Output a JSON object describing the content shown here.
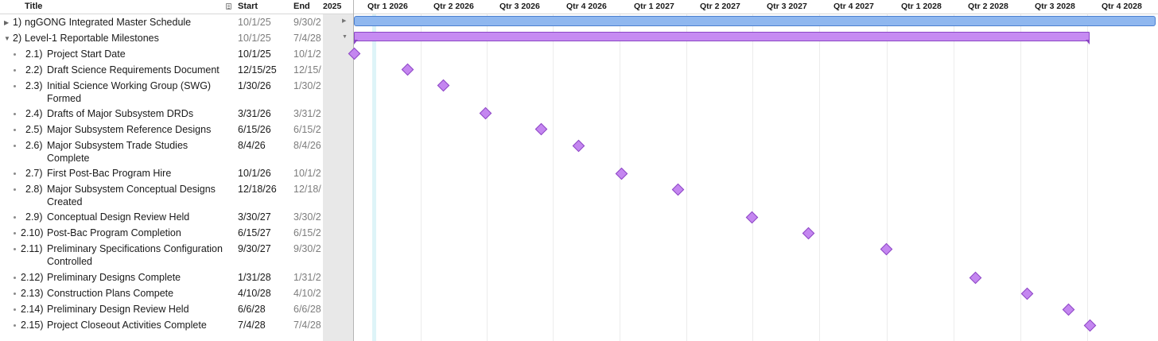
{
  "outline": {
    "headers": {
      "title": "Title",
      "start": "Start",
      "end": "End"
    },
    "rows": [
      {
        "num": "1)",
        "title": "ngGONG Integrated Master Schedule",
        "start": "10/1/25",
        "end": "9/30/2"
      },
      {
        "num": "2)",
        "title": "Level-1 Reportable Milestones",
        "start": "10/1/25",
        "end": "7/4/28"
      },
      {
        "num": "2.1)",
        "title": "Project Start Date",
        "start": "10/1/25",
        "end": "10/1/2"
      },
      {
        "num": "2.2)",
        "title": "Draft Science Requirements Document",
        "start": "12/15/25",
        "end": "12/15/"
      },
      {
        "num": "2.3)",
        "title": "Initial Science Working Group (SWG) Formed",
        "start": "1/30/26",
        "end": "1/30/2"
      },
      {
        "num": "2.4)",
        "title": "Drafts of Major Subsystem DRDs",
        "start": "3/31/26",
        "end": "3/31/2"
      },
      {
        "num": "2.5)",
        "title": "Major Subsystem Reference Designs",
        "start": "6/15/26",
        "end": "6/15/2"
      },
      {
        "num": "2.6)",
        "title": "Major Subsystem Trade Studies Complete",
        "start": "8/4/26",
        "end": "8/4/26"
      },
      {
        "num": "2.7)",
        "title": "First Post-Bac Program Hire",
        "start": "10/1/26",
        "end": "10/1/2"
      },
      {
        "num": "2.8)",
        "title": "Major Subsystem Conceptual Designs Created",
        "start": "12/18/26",
        "end": "12/18/"
      },
      {
        "num": "2.9)",
        "title": "Conceptual Design Review Held",
        "start": "3/30/27",
        "end": "3/30/2"
      },
      {
        "num": "2.10)",
        "title": "Post-Bac Program Completion",
        "start": "6/15/27",
        "end": "6/15/2"
      },
      {
        "num": "2.11)",
        "title": "Preliminary Specifications Configuration Controlled",
        "start": "9/30/27",
        "end": "9/30/2"
      },
      {
        "num": "2.12)",
        "title": "Preliminary Designs Complete",
        "start": "1/31/28",
        "end": "1/31/2"
      },
      {
        "num": "2.13)",
        "title": "Construction Plans Compete",
        "start": "4/10/28",
        "end": "4/10/2"
      },
      {
        "num": "2.14)",
        "title": "Preliminary Design Review Held",
        "start": "6/6/28",
        "end": "6/6/28"
      },
      {
        "num": "2.15)",
        "title": "Project Closeout Activities Complete",
        "start": "7/4/28",
        "end": "7/4/28"
      }
    ]
  },
  "timeline": {
    "quarters": [
      "2025",
      "Qtr 1 2026",
      "Qtr 2 2026",
      "Qtr 3 2026",
      "Qtr 4 2026",
      "Qtr 1 2027",
      "Qtr 2 2027",
      "Qtr 3 2027",
      "Qtr 4 2027",
      "Qtr 1 2028",
      "Qtr 2 2028",
      "Qtr 3 2028",
      "Qtr 4 2028"
    ]
  },
  "colors": {
    "summary_bar": "#8fb7ef",
    "milestone_group_bar": "#c68bf2",
    "milestone_diamond": "#c486f0",
    "today_line": "#def4f8"
  },
  "icons": {
    "collapsed": "disclosure-triangle-right-icon",
    "expanded": "disclosure-triangle-down-icon",
    "bullet": "bullet-icon",
    "columns": "column-chooser-icon"
  }
}
